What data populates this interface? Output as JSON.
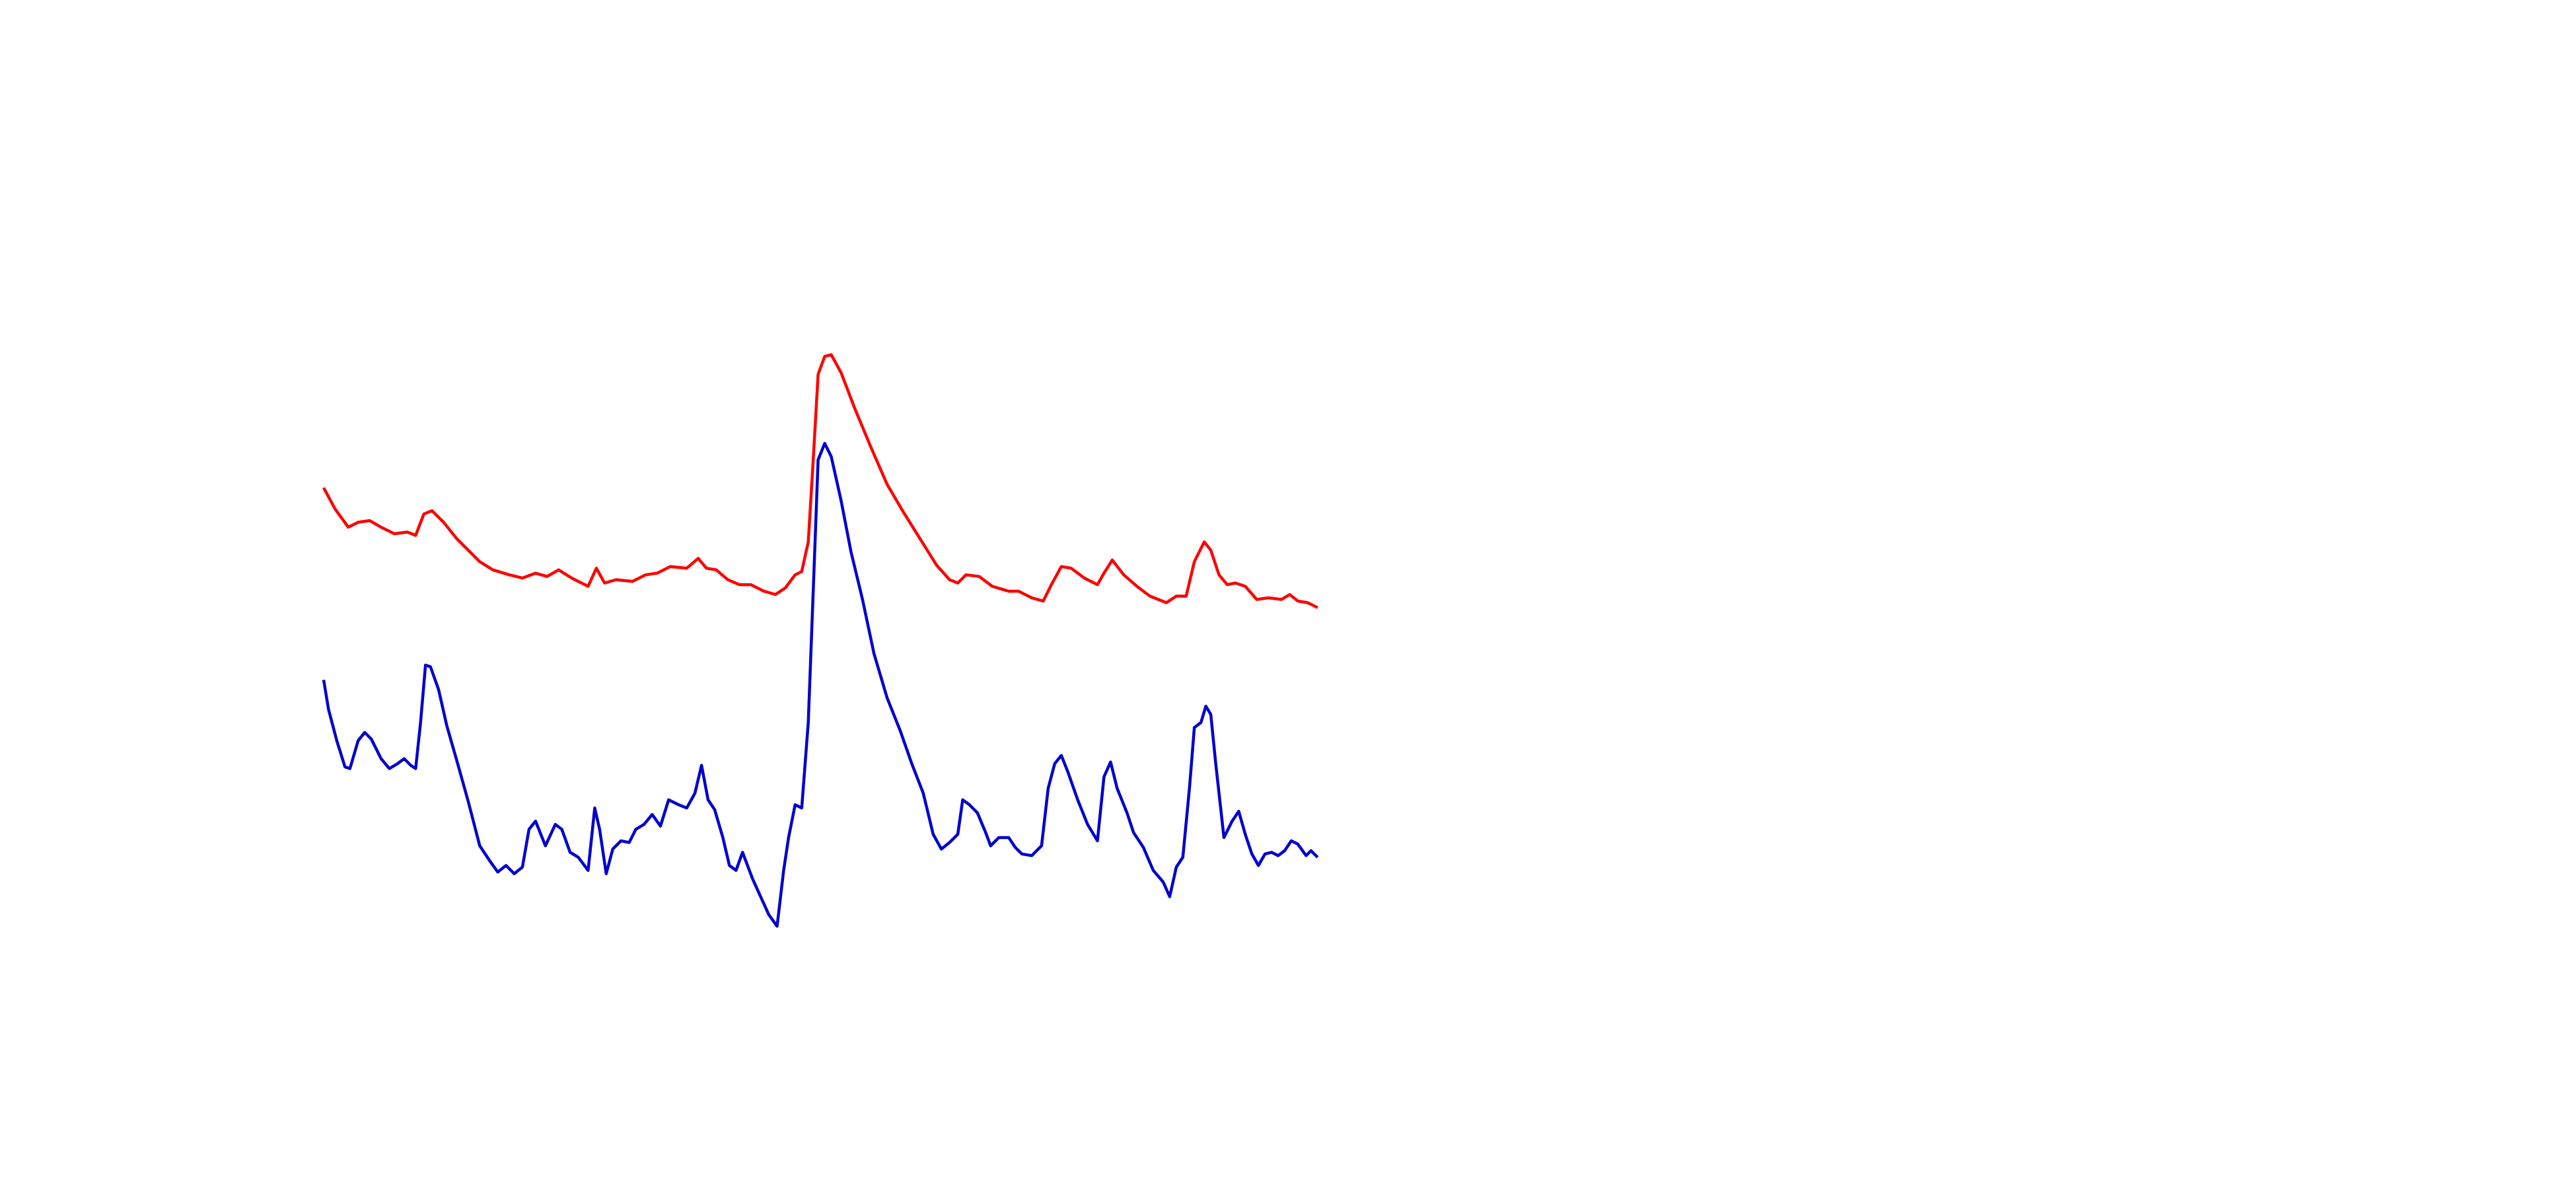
{
  "chart_data": {
    "type": "line",
    "xlim": [
      0,
      1568
    ],
    "ylim": [
      724,
      0
    ],
    "series": [
      {
        "color": "#ff0000",
        "x": [
          197,
          204,
          212,
          218,
          225,
          232,
          240,
          248,
          253,
          258,
          263,
          270,
          278,
          285,
          292,
          300,
          310,
          318,
          326,
          333,
          340,
          348,
          358,
          363,
          368,
          375,
          385,
          393,
          400,
          408,
          418,
          425,
          430,
          436,
          443,
          450,
          457,
          465,
          472,
          478,
          484,
          488,
          492,
          495,
          498,
          502,
          506,
          512,
          520,
          530,
          540,
          550,
          560,
          570,
          578,
          583,
          588,
          596,
          604,
          614,
          620,
          628,
          635,
          640,
          646,
          652,
          660,
          668,
          672,
          677,
          684,
          692,
          700,
          710,
          716,
          722,
          727,
          733,
          737,
          742,
          747,
          752,
          758,
          765,
          772,
          780,
          785,
          790,
          796,
          802
        ],
        "values": [
          297,
          310,
          321,
          318,
          317,
          321,
          325,
          324,
          326,
          313,
          311,
          318,
          328,
          335,
          342,
          347,
          350,
          352,
          349,
          351,
          347,
          352,
          357,
          346,
          355,
          353,
          354,
          350,
          349,
          345,
          346,
          340,
          346,
          347,
          353,
          356,
          356,
          360,
          362,
          358,
          350,
          348,
          330,
          280,
          228,
          217,
          216,
          227,
          248,
          272,
          295,
          312,
          328,
          344,
          353,
          355,
          350,
          351,
          357,
          360,
          360,
          364,
          366,
          356,
          345,
          346,
          352,
          356,
          349,
          341,
          350,
          357,
          363,
          367,
          363,
          363,
          342,
          330,
          335,
          350,
          356,
          355,
          357,
          365,
          364,
          365,
          362,
          366,
          367,
          370
        ]
      },
      {
        "color": "#0000cc",
        "x": [
          197,
          200,
          205,
          210,
          213,
          218,
          222,
          226,
          232,
          237,
          242,
          246,
          250,
          253,
          256,
          259,
          262,
          267,
          272,
          278,
          285,
          292,
          298,
          303,
          308,
          313,
          318,
          322,
          326,
          332,
          338,
          342,
          347,
          352,
          358,
          362,
          365,
          369,
          373,
          378,
          383,
          387,
          392,
          397,
          402,
          407,
          413,
          418,
          423,
          427,
          431,
          435,
          440,
          444,
          448,
          452,
          458,
          463,
          468,
          473,
          477,
          480,
          484,
          488,
          492,
          495,
          498,
          502,
          506,
          512,
          518,
          525,
          532,
          540,
          548,
          555,
          562,
          568,
          573,
          578,
          583,
          586,
          590,
          595,
          600,
          603,
          608,
          614,
          618,
          622,
          628,
          634,
          638,
          642,
          646,
          650,
          656,
          662,
          668,
          672,
          676,
          680,
          686,
          690,
          696,
          702,
          708,
          712,
          716,
          720,
          724,
          727,
          731,
          734,
          737,
          740,
          745,
          750,
          754,
          758,
          762,
          766,
          770,
          774,
          778,
          782,
          786,
          790,
          795,
          798,
          802
        ],
        "values": [
          414,
          432,
          451,
          467,
          468,
          451,
          446,
          450,
          462,
          468,
          465,
          462,
          466,
          468,
          440,
          405,
          406,
          420,
          442,
          463,
          488,
          515,
          524,
          531,
          527,
          532,
          528,
          505,
          500,
          515,
          502,
          505,
          519,
          522,
          530,
          492,
          505,
          532,
          517,
          512,
          513,
          505,
          502,
          496,
          503,
          487,
          490,
          492,
          483,
          466,
          487,
          493,
          510,
          527,
          530,
          519,
          535,
          546,
          557,
          564,
          530,
          510,
          490,
          492,
          440,
          360,
          280,
          270,
          278,
          305,
          336,
          365,
          398,
          425,
          445,
          465,
          483,
          508,
          517,
          513,
          508,
          487,
          490,
          495,
          507,
          515,
          510,
          510,
          516,
          520,
          521,
          515,
          480,
          465,
          460,
          470,
          487,
          502,
          512,
          473,
          464,
          480,
          495,
          507,
          516,
          530,
          537,
          546,
          528,
          522,
          480,
          443,
          440,
          430,
          435,
          465,
          510,
          500,
          494,
          508,
          520,
          527,
          520,
          519,
          521,
          518,
          512,
          514,
          521,
          518,
          522
        ]
      }
    ]
  }
}
